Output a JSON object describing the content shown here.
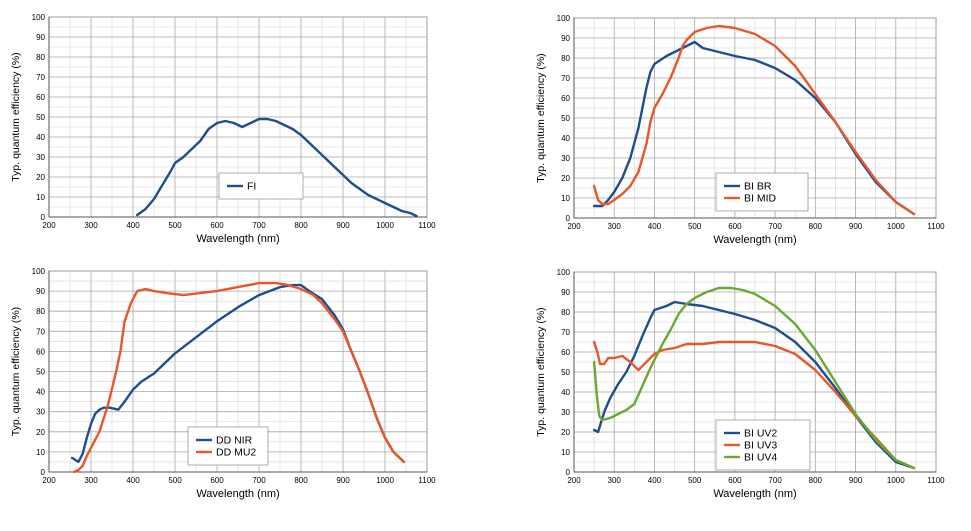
{
  "chart_data": [
    {
      "type": "line",
      "xlabel": "Wavelength (nm)",
      "ylabel": "Typ. quantum efficiency (%)",
      "xlim": [
        200,
        1100
      ],
      "ylim": [
        0,
        100
      ],
      "x_ticks": [
        200,
        300,
        400,
        500,
        600,
        700,
        800,
        900,
        1000,
        1100
      ],
      "y_ticks": [
        0,
        10,
        20,
        30,
        40,
        50,
        60,
        70,
        80,
        90,
        100
      ],
      "grid": true,
      "legend_position": "center",
      "series": [
        {
          "name": "FI",
          "color": "#1f4e8c",
          "points": [
            [
              410,
              1
            ],
            [
              430,
              4
            ],
            [
              450,
              9
            ],
            [
              470,
              16
            ],
            [
              490,
              23
            ],
            [
              500,
              27
            ],
            [
              520,
              30
            ],
            [
              540,
              34
            ],
            [
              560,
              38
            ],
            [
              580,
              44
            ],
            [
              600,
              47
            ],
            [
              620,
              48
            ],
            [
              640,
              47
            ],
            [
              660,
              45
            ],
            [
              680,
              47
            ],
            [
              700,
              49
            ],
            [
              720,
              49
            ],
            [
              740,
              48
            ],
            [
              760,
              46
            ],
            [
              780,
              44
            ],
            [
              800,
              41
            ],
            [
              820,
              37
            ],
            [
              840,
              33
            ],
            [
              860,
              29
            ],
            [
              880,
              25
            ],
            [
              900,
              21
            ],
            [
              920,
              17
            ],
            [
              940,
              14
            ],
            [
              960,
              11
            ],
            [
              980,
              9
            ],
            [
              1000,
              7
            ],
            [
              1020,
              5
            ],
            [
              1040,
              3
            ],
            [
              1060,
              2
            ],
            [
              1075,
              0.5
            ]
          ]
        }
      ]
    },
    {
      "type": "line",
      "xlabel": "Wavelength (nm)",
      "ylabel": "Typ. quantum efficiency (%)",
      "xlim": [
        200,
        1100
      ],
      "ylim": [
        0,
        100
      ],
      "x_ticks": [
        200,
        300,
        400,
        500,
        600,
        700,
        800,
        900,
        1000,
        1100
      ],
      "y_ticks": [
        0,
        10,
        20,
        30,
        40,
        50,
        60,
        70,
        80,
        90,
        100
      ],
      "grid": true,
      "legend_position": "center-right",
      "series": [
        {
          "name": "BI BR",
          "color": "#1f4e8c",
          "points": [
            [
              250,
              6
            ],
            [
              270,
              6
            ],
            [
              285,
              9
            ],
            [
              300,
              13
            ],
            [
              320,
              20
            ],
            [
              340,
              30
            ],
            [
              360,
              45
            ],
            [
              380,
              65
            ],
            [
              390,
              73
            ],
            [
              400,
              77
            ],
            [
              430,
              81
            ],
            [
              460,
              84
            ],
            [
              490,
              87
            ],
            [
              500,
              88
            ],
            [
              520,
              85
            ],
            [
              560,
              83
            ],
            [
              600,
              81
            ],
            [
              650,
              79
            ],
            [
              700,
              75
            ],
            [
              750,
              69
            ],
            [
              800,
              60
            ],
            [
              850,
              48
            ],
            [
              900,
              32
            ],
            [
              950,
              18
            ],
            [
              1000,
              8
            ],
            [
              1045,
              2
            ]
          ]
        },
        {
          "name": "BI MID",
          "color": "#e8572a",
          "points": [
            [
              250,
              16
            ],
            [
              260,
              9
            ],
            [
              270,
              7
            ],
            [
              285,
              7
            ],
            [
              300,
              9
            ],
            [
              320,
              12
            ],
            [
              340,
              16
            ],
            [
              360,
              23
            ],
            [
              380,
              37
            ],
            [
              390,
              48
            ],
            [
              400,
              55
            ],
            [
              420,
              62
            ],
            [
              440,
              70
            ],
            [
              460,
              80
            ],
            [
              470,
              86
            ],
            [
              480,
              89
            ],
            [
              500,
              93
            ],
            [
              530,
              95
            ],
            [
              560,
              96
            ],
            [
              600,
              95
            ],
            [
              650,
              92
            ],
            [
              700,
              86
            ],
            [
              750,
              76
            ],
            [
              800,
              62
            ],
            [
              850,
              48
            ],
            [
              900,
              33
            ],
            [
              950,
              19
            ],
            [
              1000,
              8
            ],
            [
              1045,
              2
            ]
          ]
        }
      ]
    },
    {
      "type": "line",
      "xlabel": "Wavelength (nm)",
      "ylabel": "Typ. quantum efficiency (%)",
      "xlim": [
        200,
        1100
      ],
      "ylim": [
        0,
        100
      ],
      "x_ticks": [
        200,
        300,
        400,
        500,
        600,
        700,
        800,
        900,
        1000,
        1100
      ],
      "y_ticks": [
        0,
        10,
        20,
        30,
        40,
        50,
        60,
        70,
        80,
        90,
        100
      ],
      "grid": true,
      "legend_position": "bottom-center",
      "series": [
        {
          "name": "DD NIR",
          "color": "#1f4e8c",
          "points": [
            [
              255,
              7
            ],
            [
              270,
              5
            ],
            [
              280,
              9
            ],
            [
              290,
              17
            ],
            [
              300,
              24
            ],
            [
              310,
              29
            ],
            [
              320,
              31
            ],
            [
              330,
              32
            ],
            [
              345,
              32
            ],
            [
              365,
              31
            ],
            [
              380,
              35
            ],
            [
              400,
              41
            ],
            [
              420,
              45
            ],
            [
              450,
              49
            ],
            [
              500,
              59
            ],
            [
              550,
              67
            ],
            [
              600,
              75
            ],
            [
              650,
              82
            ],
            [
              700,
              88
            ],
            [
              750,
              92
            ],
            [
              780,
              93
            ],
            [
              800,
              93
            ],
            [
              820,
              90
            ],
            [
              850,
              86
            ],
            [
              880,
              78
            ],
            [
              900,
              71
            ],
            [
              920,
              60
            ],
            [
              940,
              50
            ],
            [
              960,
              39
            ],
            [
              980,
              27
            ],
            [
              1000,
              17
            ],
            [
              1020,
              10
            ],
            [
              1045,
              5
            ]
          ]
        },
        {
          "name": "DD MU2",
          "color": "#e8572a",
          "points": [
            [
              260,
              0
            ],
            [
              270,
              1
            ],
            [
              280,
              3
            ],
            [
              290,
              8
            ],
            [
              300,
              12
            ],
            [
              320,
              20
            ],
            [
              340,
              33
            ],
            [
              360,
              50
            ],
            [
              370,
              60
            ],
            [
              380,
              75
            ],
            [
              395,
              84
            ],
            [
              410,
              90
            ],
            [
              430,
              91
            ],
            [
              450,
              90
            ],
            [
              480,
              89
            ],
            [
              520,
              88
            ],
            [
              560,
              89
            ],
            [
              600,
              90
            ],
            [
              650,
              92
            ],
            [
              700,
              94
            ],
            [
              740,
              94
            ],
            [
              770,
              93
            ],
            [
              800,
              91
            ],
            [
              830,
              88
            ],
            [
              850,
              84
            ],
            [
              880,
              76
            ],
            [
              900,
              70
            ],
            [
              920,
              60
            ],
            [
              940,
              50
            ],
            [
              960,
              39
            ],
            [
              980,
              27
            ],
            [
              1000,
              17
            ],
            [
              1020,
              10
            ],
            [
              1045,
              5
            ]
          ]
        }
      ]
    },
    {
      "type": "line",
      "xlabel": "Wavelength (nm)",
      "ylabel": "Typ. quantum efficiency (%)",
      "xlim": [
        200,
        1100
      ],
      "ylim": [
        0,
        100
      ],
      "x_ticks": [
        200,
        300,
        400,
        500,
        600,
        700,
        800,
        900,
        1000,
        1100
      ],
      "y_ticks": [
        0,
        10,
        20,
        30,
        40,
        50,
        60,
        70,
        80,
        90,
        100
      ],
      "grid": true,
      "legend_position": "center-right",
      "series": [
        {
          "name": "BI UV2",
          "color": "#1f4e8c",
          "points": [
            [
              250,
              21
            ],
            [
              260,
              20
            ],
            [
              275,
              30
            ],
            [
              290,
              37
            ],
            [
              310,
              44
            ],
            [
              330,
              50
            ],
            [
              350,
              58
            ],
            [
              370,
              68
            ],
            [
              390,
              77
            ],
            [
              400,
              81
            ],
            [
              430,
              83
            ],
            [
              450,
              85
            ],
            [
              480,
              84
            ],
            [
              520,
              83
            ],
            [
              560,
              81
            ],
            [
              600,
              79
            ],
            [
              650,
              76
            ],
            [
              700,
              72
            ],
            [
              750,
              65
            ],
            [
              800,
              55
            ],
            [
              850,
              42
            ],
            [
              900,
              28
            ],
            [
              950,
              15
            ],
            [
              1000,
              5
            ],
            [
              1045,
              2
            ]
          ]
        },
        {
          "name": "BI UV3",
          "color": "#e8572a",
          "points": [
            [
              250,
              65
            ],
            [
              258,
              60
            ],
            [
              265,
              54
            ],
            [
              275,
              54
            ],
            [
              285,
              57
            ],
            [
              300,
              57
            ],
            [
              320,
              58
            ],
            [
              340,
              55
            ],
            [
              360,
              51
            ],
            [
              380,
              55
            ],
            [
              400,
              59
            ],
            [
              420,
              61
            ],
            [
              450,
              62
            ],
            [
              480,
              64
            ],
            [
              520,
              64
            ],
            [
              560,
              65
            ],
            [
              600,
              65
            ],
            [
              650,
              65
            ],
            [
              700,
              63
            ],
            [
              750,
              59
            ],
            [
              800,
              51
            ],
            [
              850,
              40
            ],
            [
              900,
              28
            ],
            [
              950,
              17
            ],
            [
              1000,
              6
            ],
            [
              1045,
              2
            ]
          ]
        },
        {
          "name": "BI UV4",
          "color": "#6aa832",
          "points": [
            [
              250,
              55
            ],
            [
              257,
              38
            ],
            [
              263,
              28
            ],
            [
              270,
              26
            ],
            [
              290,
              27
            ],
            [
              310,
              29
            ],
            [
              330,
              31
            ],
            [
              350,
              34
            ],
            [
              370,
              43
            ],
            [
              390,
              52
            ],
            [
              400,
              56
            ],
            [
              420,
              64
            ],
            [
              440,
              71
            ],
            [
              460,
              79
            ],
            [
              480,
              84
            ],
            [
              500,
              87
            ],
            [
              530,
              90
            ],
            [
              560,
              92
            ],
            [
              590,
              92
            ],
            [
              620,
              91
            ],
            [
              650,
              89
            ],
            [
              700,
              83
            ],
            [
              750,
              74
            ],
            [
              800,
              61
            ],
            [
              850,
              45
            ],
            [
              900,
              29
            ],
            [
              950,
              16
            ],
            [
              1000,
              6
            ],
            [
              1045,
              2
            ]
          ]
        }
      ]
    }
  ]
}
